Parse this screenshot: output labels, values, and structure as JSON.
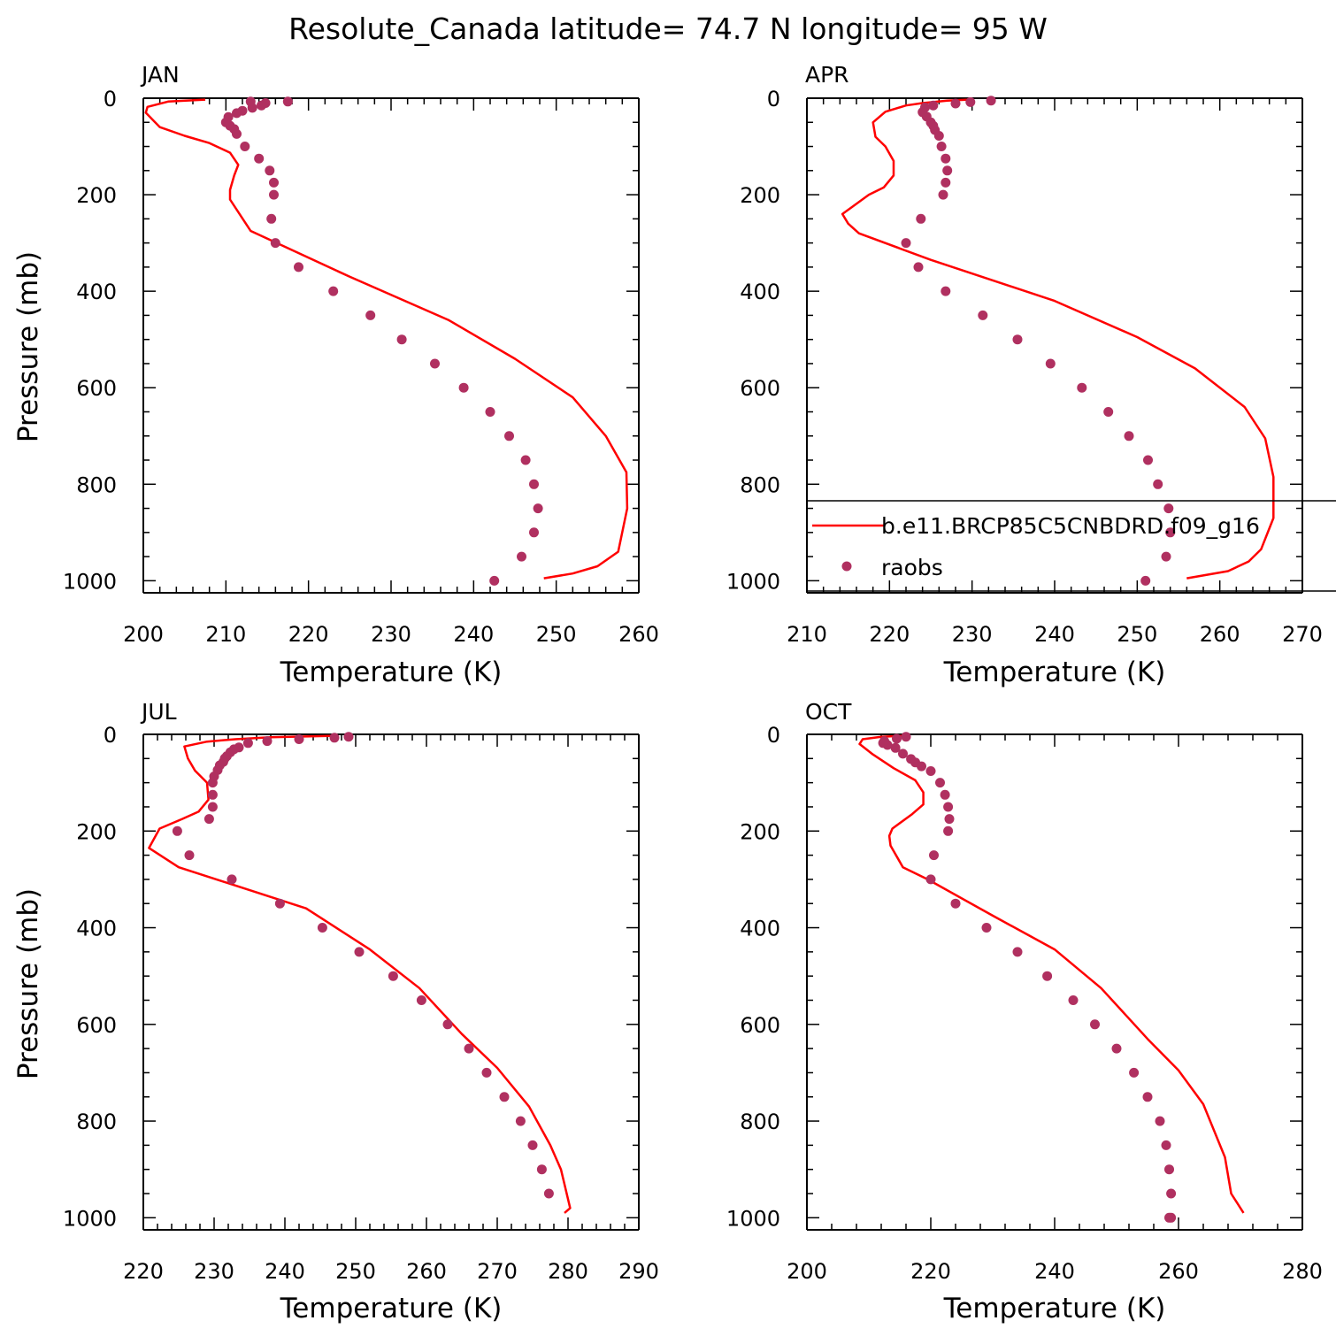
{
  "title": "Resolute_Canada  latitude= 74.7 N longitude= 95 W",
  "colors": {
    "model": "#ff0000",
    "obs": "#b03060"
  },
  "legend": {
    "model_label": "b.e11.BRCP85C5CNBDRD.f09_g16",
    "obs_label": "raobs",
    "panel": "APR"
  },
  "chart_data": [
    {
      "type": "line",
      "panel": "JAN",
      "xlabel": "Temperature (K)",
      "ylabel": "Pressure (mb)",
      "xlim": [
        200,
        260
      ],
      "ylim": [
        1025,
        0
      ],
      "xticks": [
        200,
        210,
        220,
        230,
        240,
        250,
        260
      ],
      "yticks": [
        0,
        200,
        400,
        600,
        800,
        1000
      ],
      "series": [
        {
          "name": "b.e11.BRCP85C5CNBDRD.f09_g16",
          "kind": "line",
          "x": [
            207.5,
            203,
            200.5,
            200.3,
            202,
            205,
            208,
            210.5,
            211.5,
            211,
            210.5,
            210.5,
            213,
            225,
            237,
            245,
            252,
            256,
            258.5,
            258.6,
            257.5,
            255,
            252,
            248.5
          ],
          "y": [
            3,
            7,
            18,
            30,
            60,
            78,
            93,
            113,
            138,
            160,
            190,
            210,
            275,
            370,
            460,
            540,
            620,
            700,
            775,
            850,
            940,
            970,
            985,
            995
          ]
        },
        {
          "name": "raobs",
          "kind": "points",
          "x": [
            217.5,
            214.8,
            214.3,
            213.2,
            213.0,
            212.0,
            211.3,
            210.3,
            210.0,
            210.5,
            211.0,
            211.3,
            212.3,
            214.0,
            215.3,
            215.8,
            215.8,
            215.5,
            216.0,
            218.8,
            223.0,
            227.5,
            231.3,
            235.3,
            238.8,
            242.0,
            244.3,
            246.3,
            247.3,
            247.8,
            247.3,
            245.8,
            242.5
          ],
          "y": [
            7,
            10,
            15,
            20,
            7,
            26,
            31,
            39,
            50,
            57,
            64,
            74,
            100,
            125,
            150,
            175,
            200,
            250,
            300,
            350,
            400,
            450,
            500,
            550,
            600,
            650,
            700,
            750,
            800,
            850,
            900,
            950,
            1000
          ]
        }
      ]
    },
    {
      "type": "line",
      "panel": "APR",
      "xlabel": "Temperature (K)",
      "ylabel": "",
      "xlim": [
        210,
        270
      ],
      "ylim": [
        1025,
        0
      ],
      "xticks": [
        210,
        220,
        230,
        240,
        250,
        260,
        270
      ],
      "yticks": [
        0,
        200,
        400,
        600,
        800,
        1000
      ],
      "series": [
        {
          "name": "b.e11.BRCP85C5CNBDRD.f09_g16",
          "kind": "line",
          "x": [
            229.5,
            227,
            224,
            222,
            219.5,
            218,
            218.3,
            219.5,
            220.5,
            220.5,
            219.3,
            217.5,
            215.5,
            214.3,
            215,
            216.3,
            225,
            240,
            250,
            257,
            263,
            265.5,
            266.5,
            266.5,
            265,
            263.5,
            261,
            256
          ],
          "y": [
            3,
            5,
            10,
            15,
            28,
            50,
            80,
            100,
            130,
            160,
            185,
            200,
            225,
            240,
            260,
            280,
            335,
            420,
            495,
            560,
            640,
            705,
            785,
            870,
            935,
            960,
            980,
            995
          ]
        },
        {
          "name": "raobs",
          "kind": "points",
          "x": [
            232.3,
            229.8,
            228.0,
            225.3,
            224.3,
            224.0,
            224.5,
            225.0,
            225.3,
            225.5,
            226.0,
            226.3,
            226.8,
            227.0,
            226.8,
            226.5,
            223.8,
            222.0,
            223.5,
            226.8,
            231.3,
            235.5,
            239.5,
            243.3,
            246.5,
            249.0,
            251.3,
            252.5,
            253.8,
            254.0,
            253.5,
            251.0
          ],
          "y": [
            5,
            8,
            11,
            15,
            19,
            29,
            38,
            50,
            57,
            66,
            78,
            100,
            125,
            150,
            175,
            200,
            250,
            300,
            350,
            400,
            450,
            500,
            550,
            600,
            650,
            700,
            750,
            800,
            850,
            900,
            950,
            1000
          ]
        }
      ]
    },
    {
      "type": "line",
      "panel": "JUL",
      "xlabel": "Temperature (K)",
      "ylabel": "Pressure (mb)",
      "xlim": [
        220,
        290
      ],
      "ylim": [
        1025,
        0
      ],
      "xticks": [
        220,
        230,
        240,
        250,
        260,
        270,
        280,
        290
      ],
      "yticks": [
        0,
        200,
        400,
        600,
        800,
        1000
      ],
      "series": [
        {
          "name": "b.e11.BRCP85C5CNBDRD.f09_g16",
          "kind": "line",
          "x": [
            247,
            238,
            233,
            229,
            225.8,
            226.3,
            227.3,
            229,
            229.2,
            227.8,
            225.5,
            222.3,
            220.8,
            225,
            243,
            252,
            259,
            265,
            270,
            274.5,
            277.5,
            279,
            280.3,
            279.5
          ],
          "y": [
            3,
            6,
            10,
            15,
            25,
            50,
            75,
            100,
            135,
            160,
            175,
            195,
            235,
            275,
            360,
            445,
            525,
            620,
            690,
            770,
            850,
            900,
            980,
            990
          ]
        },
        {
          "name": "raobs",
          "kind": "points",
          "x": [
            249.0,
            247.0,
            242.0,
            237.5,
            234.8,
            233.5,
            232.8,
            232.3,
            231.8,
            231.5,
            231.3,
            230.8,
            230.5,
            230.0,
            229.8,
            229.8,
            229.8,
            229.3,
            224.8,
            226.5,
            232.5,
            239.3,
            245.3,
            250.5,
            255.3,
            259.3,
            263.0,
            266.0,
            268.5,
            271.0,
            273.3,
            275.0,
            276.3,
            277.3
          ],
          "y": [
            5,
            7,
            10,
            14,
            18,
            27,
            31,
            37,
            45,
            50,
            57,
            64,
            74,
            87,
            100,
            125,
            150,
            175,
            200,
            250,
            300,
            350,
            400,
            450,
            500,
            550,
            600,
            650,
            700,
            750,
            800,
            850,
            900,
            950
          ]
        }
      ]
    },
    {
      "type": "line",
      "panel": "OCT",
      "xlabel": "Temperature (K)",
      "ylabel": "",
      "xlim": [
        200,
        280
      ],
      "ylim": [
        1025,
        0
      ],
      "xticks": [
        200,
        220,
        240,
        260,
        280
      ],
      "yticks": [
        0,
        200,
        400,
        600,
        800,
        1000
      ],
      "series": [
        {
          "name": "b.e11.BRCP85C5CNBDRD.f09_g16",
          "kind": "line",
          "x": [
            215.5,
            212,
            209,
            208.5,
            210.5,
            214,
            217.5,
            218.8,
            218.8,
            217,
            213.8,
            213.3,
            213.5,
            215.5,
            219.5,
            230,
            240,
            247.5,
            255,
            260,
            264,
            267.5,
            268.5,
            270.5
          ],
          "y": [
            3,
            5,
            10,
            20,
            40,
            70,
            95,
            120,
            145,
            165,
            195,
            210,
            230,
            275,
            300,
            375,
            445,
            525,
            630,
            695,
            765,
            875,
            950,
            990
          ]
        },
        {
          "name": "raobs",
          "kind": "points",
          "x": [
            216.0,
            214.5,
            212.5,
            212.3,
            213.0,
            214.3,
            215.5,
            216.8,
            217.5,
            218.5,
            220.0,
            221.5,
            222.3,
            222.8,
            223.0,
            222.8,
            220.5,
            220.0,
            224.0,
            229.0,
            234.0,
            238.8,
            243.0,
            246.5,
            250.0,
            252.8,
            255.0,
            257.0,
            258.0,
            258.5,
            258.8,
            258.8,
            258.5
          ],
          "y": [
            5,
            9,
            14,
            18,
            22,
            28,
            40,
            51,
            58,
            66,
            76,
            100,
            125,
            150,
            175,
            200,
            250,
            300,
            350,
            400,
            450,
            500,
            550,
            600,
            650,
            700,
            750,
            800,
            850,
            900,
            950,
            1000,
            1000
          ]
        }
      ]
    }
  ]
}
